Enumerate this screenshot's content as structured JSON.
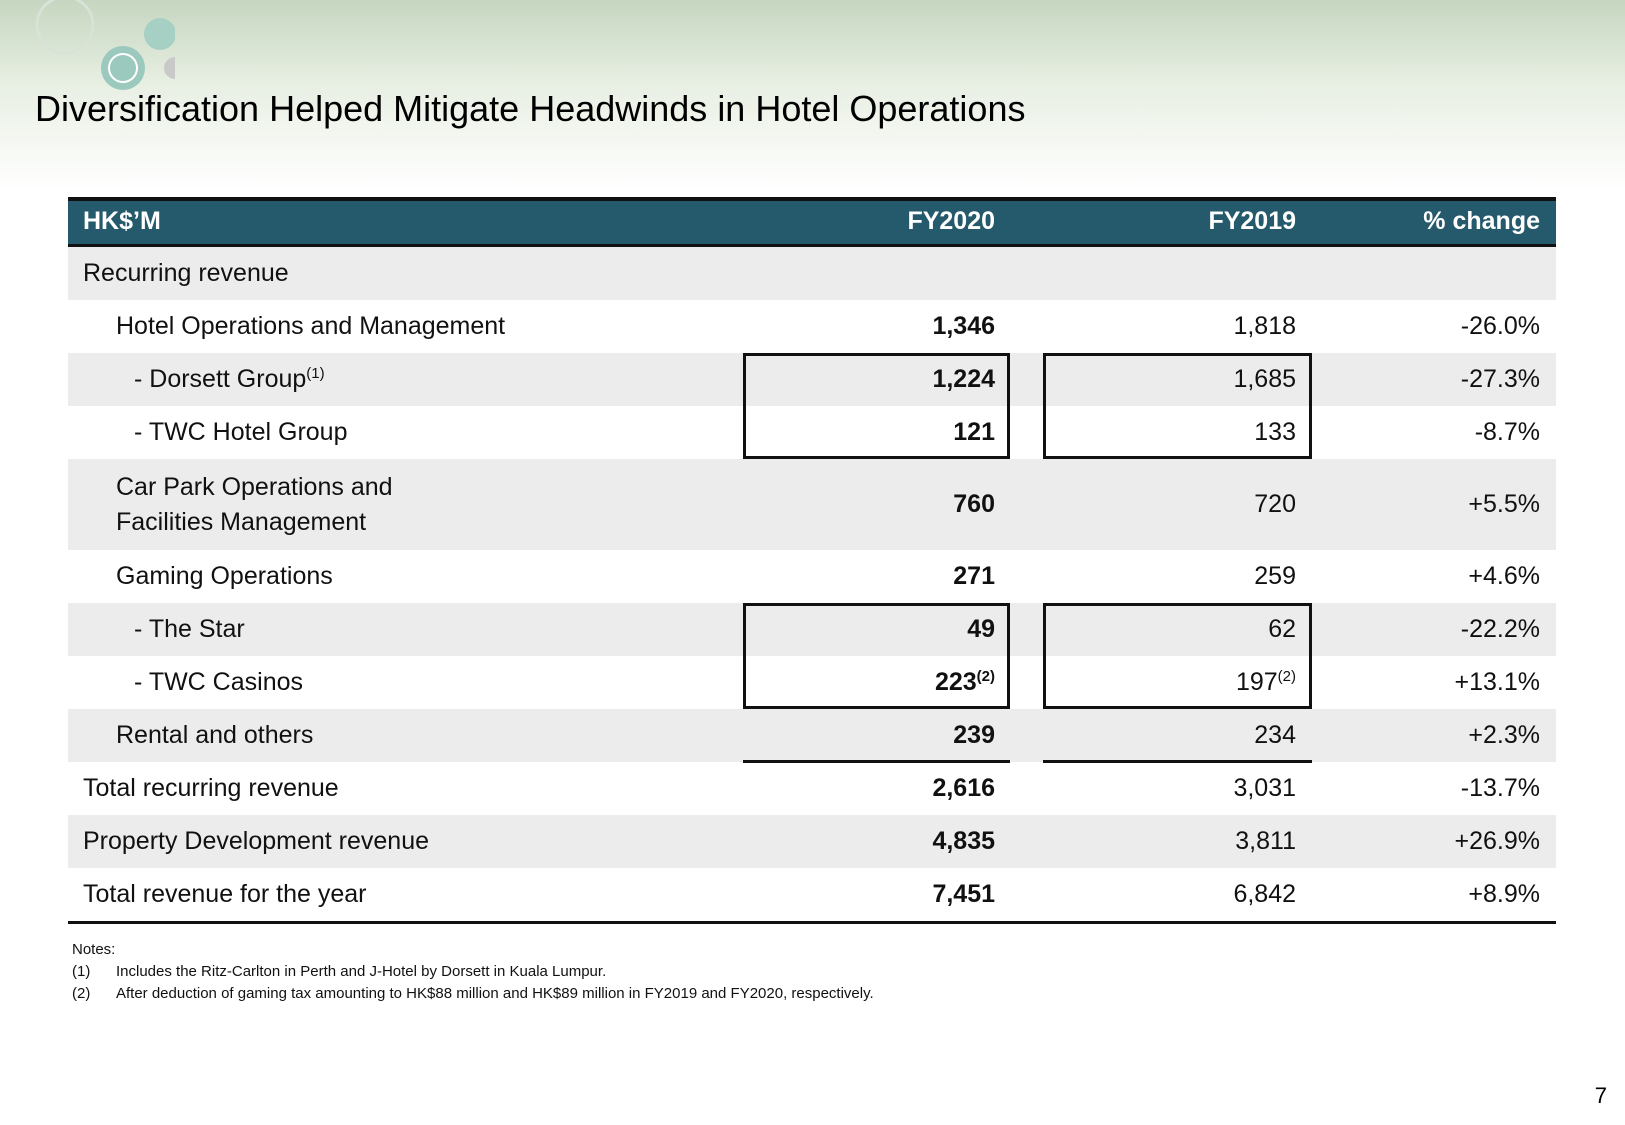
{
  "title": "Diversification Helped Mitigate Headwinds in Hotel Operations",
  "table": {
    "header": [
      "HK$’M",
      "FY2020",
      "FY2019",
      "% change"
    ],
    "rows": [
      [
        "Recurring revenue"
      ],
      [
        "Hotel Operations and Management",
        "1,346",
        "1,818",
        "-26.0%"
      ],
      [
        {
          "text": "- Dorsett Group",
          "sup": "(1)"
        },
        "1,224",
        "1,685",
        "-27.3%"
      ],
      [
        "- TWC Hotel Group",
        "121",
        "133",
        "-8.7%"
      ],
      [
        "Car Park Operations and\nFacilities Management",
        "760",
        "720",
        "+5.5%"
      ],
      [
        "Gaming Operations",
        "271",
        "259",
        "+4.6%"
      ],
      [
        "- The Star",
        "49",
        "62",
        "-22.2%"
      ],
      [
        "- TWC Casinos",
        {
          "text": "223",
          "sup": "(2)"
        },
        {
          "text": "197",
          "sup": "(2)"
        },
        "+13.1%"
      ],
      [
        "Rental and others",
        "239",
        "234",
        "+2.3%"
      ],
      [
        "Total recurring revenue",
        "2,616",
        "3,031",
        "-13.7%"
      ],
      [
        "Property Development revenue",
        "4,835",
        "3,811",
        "+26.9%"
      ],
      [
        "Total revenue for the year",
        "7,451",
        "6,842",
        "+8.9%"
      ]
    ]
  },
  "notes": {
    "heading": "Notes:",
    "items": [
      {
        "marker": "(1)",
        "text": "Includes the Ritz-Carlton in Perth and J-Hotel by Dorsett in Kuala Lumpur."
      },
      {
        "marker": "(2)",
        "text": "After deduction of gaming tax amounting to HK$88 million and HK$89 million in FY2019 and FY2020, respectively."
      }
    ]
  },
  "page_number": "7"
}
